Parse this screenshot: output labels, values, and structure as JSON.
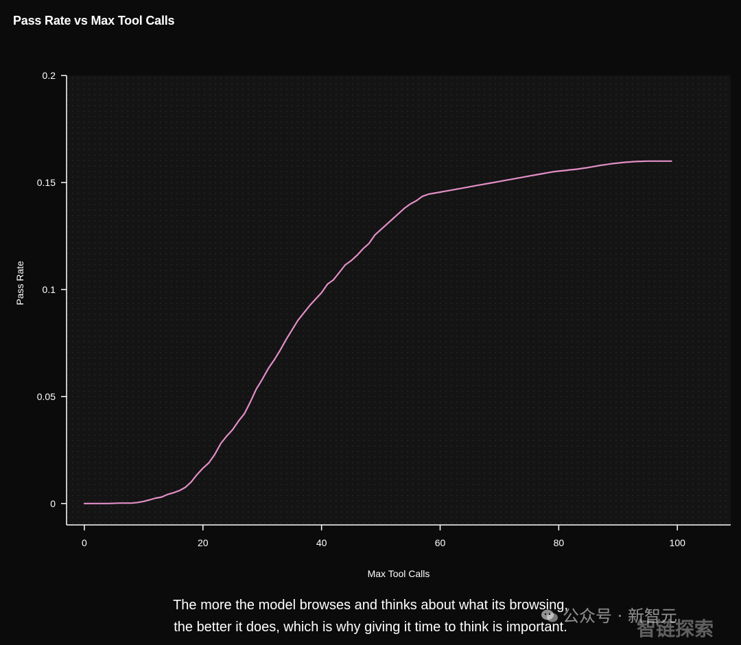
{
  "title": "Pass Rate vs Max Tool Calls",
  "caption": {
    "line1": "The more the model browses and thinks about what its browsing,",
    "line2": "the better it does, which is why giving it time to think is important."
  },
  "watermark": {
    "account": "公众号 · 新智元",
    "overlay": "智链探索"
  },
  "colors": {
    "background": "#0b0b0b",
    "plot_background": "#141414",
    "line": "#e48fc8",
    "axis": "#ffffff"
  },
  "chart_data": {
    "type": "line",
    "title": "Pass Rate vs Max Tool Calls",
    "xlabel": "Max Tool Calls",
    "ylabel": "Pass Rate",
    "xlim": [
      -3,
      109
    ],
    "ylim": [
      -0.01,
      0.2
    ],
    "xticks": [
      0,
      20,
      40,
      60,
      80,
      100
    ],
    "xtick_labels": [
      "0",
      "20",
      "40",
      "60",
      "80",
      "100"
    ],
    "yticks": [
      0,
      0.05,
      0.1,
      0.15,
      0.2
    ],
    "ytick_labels": [
      "0",
      "0.05",
      "0.1",
      "0.15",
      "0.2"
    ],
    "grid": "dotted background",
    "legend": "none",
    "series": [
      {
        "color": "#e48fc8",
        "x": [
          0,
          2,
          4,
          6,
          8,
          9,
          10,
          11,
          12,
          13,
          14,
          15,
          16,
          17,
          18,
          19,
          20,
          21,
          22,
          23,
          24,
          25,
          26,
          27,
          28,
          29,
          30,
          31,
          32,
          33,
          34,
          35,
          36,
          37,
          38,
          39,
          40,
          41,
          42,
          43,
          44,
          45,
          46,
          47,
          48,
          49,
          50,
          51,
          52,
          53,
          54,
          55,
          56,
          57,
          58,
          59,
          60,
          61,
          62,
          63,
          64,
          65,
          66,
          67,
          68,
          69,
          70,
          71,
          72,
          73,
          74,
          75,
          76,
          77,
          78,
          79,
          80,
          81,
          82,
          83,
          84,
          85,
          86,
          87,
          88,
          89,
          90,
          91,
          92,
          93,
          94,
          95,
          96,
          97,
          98,
          99
        ],
        "y": [
          0,
          0,
          0,
          0.0002,
          0.0002,
          0.0005,
          0.001,
          0.0017,
          0.0025,
          0.003,
          0.0042,
          0.005,
          0.006,
          0.0075,
          0.01,
          0.0135,
          0.0165,
          0.019,
          0.023,
          0.028,
          0.0315,
          0.0345,
          0.0385,
          0.042,
          0.0475,
          0.0535,
          0.058,
          0.063,
          0.067,
          0.0715,
          0.0765,
          0.081,
          0.0855,
          0.089,
          0.0925,
          0.0955,
          0.0985,
          0.1025,
          0.1045,
          0.108,
          0.1115,
          0.1135,
          0.116,
          0.119,
          0.1215,
          0.1255,
          0.128,
          0.1305,
          0.133,
          0.1355,
          0.138,
          0.14,
          0.1415,
          0.1435,
          0.1445,
          0.145,
          0.1455,
          0.146,
          0.1465,
          0.147,
          0.1475,
          0.148,
          0.1485,
          0.149,
          0.1495,
          0.15,
          0.1505,
          0.151,
          0.1515,
          0.152,
          0.1525,
          0.153,
          0.1535,
          0.154,
          0.1545,
          0.155,
          0.1553,
          0.1556,
          0.1559,
          0.1562,
          0.1566,
          0.157,
          0.1575,
          0.158,
          0.1584,
          0.1588,
          0.1591,
          0.1594,
          0.1596,
          0.1598,
          0.1599,
          0.16,
          0.16,
          0.16,
          0.16,
          0.16
        ]
      }
    ]
  }
}
